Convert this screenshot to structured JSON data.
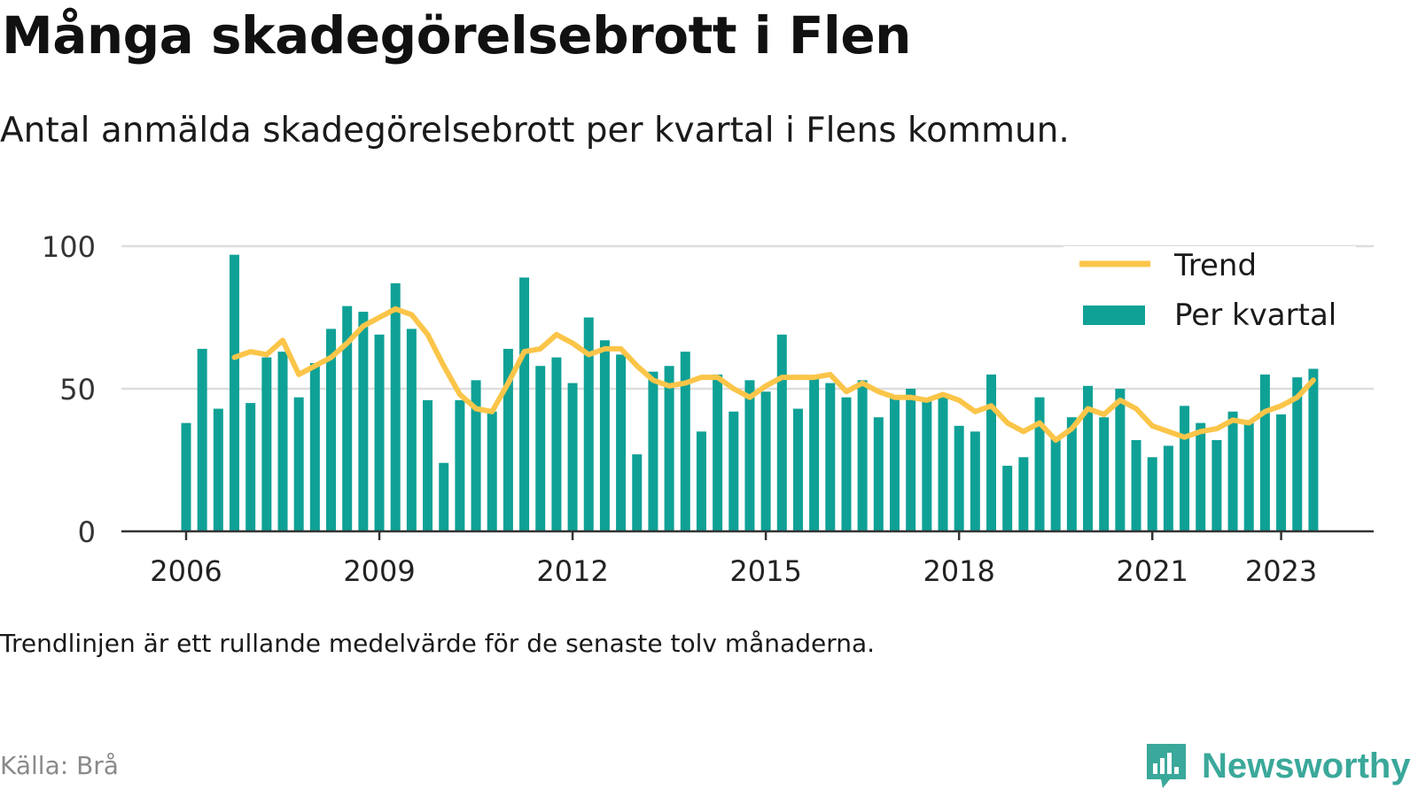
{
  "header": {
    "title": "Många skadegörelsebrott i Flen",
    "subtitle": "Antal anmälda skadegörelsebrott per kvartal i Flens kommun."
  },
  "footer": {
    "note": "Trendlinjen är ett rullande medelvärde för de senaste tolv månaderna.",
    "source": "Källa: Brå",
    "brand": "Newsworthy"
  },
  "colors": {
    "bars": "#0fa196",
    "trend": "#fbc549",
    "axis": "#333333",
    "grid": "#dddddd",
    "brand": "#3aa89a"
  },
  "chart_data": {
    "type": "bar",
    "title": "Många skadegörelsebrott i Flen",
    "subtitle": "Antal anmälda skadegörelsebrott per kvartal i Flens kommun.",
    "ylim": [
      0,
      100
    ],
    "yticks": [
      "0",
      "50",
      "100"
    ],
    "xticks": [
      {
        "label": "2006",
        "index": 0
      },
      {
        "label": "2009",
        "index": 12
      },
      {
        "label": "2012",
        "index": 24
      },
      {
        "label": "2015",
        "index": 36
      },
      {
        "label": "2018",
        "index": 48
      },
      {
        "label": "2021",
        "index": 60
      },
      {
        "label": "2023",
        "index": 68
      }
    ],
    "grid": true,
    "legend_position": "top-right",
    "categories": [
      "2006 Q1",
      "2006 Q2",
      "2006 Q3",
      "2006 Q4",
      "2007 Q1",
      "2007 Q2",
      "2007 Q3",
      "2007 Q4",
      "2008 Q1",
      "2008 Q2",
      "2008 Q3",
      "2008 Q4",
      "2009 Q1",
      "2009 Q2",
      "2009 Q3",
      "2009 Q4",
      "2010 Q1",
      "2010 Q2",
      "2010 Q3",
      "2010 Q4",
      "2011 Q1",
      "2011 Q2",
      "2011 Q3",
      "2011 Q4",
      "2012 Q1",
      "2012 Q2",
      "2012 Q3",
      "2012 Q4",
      "2013 Q1",
      "2013 Q2",
      "2013 Q3",
      "2013 Q4",
      "2014 Q1",
      "2014 Q2",
      "2014 Q3",
      "2014 Q4",
      "2015 Q1",
      "2015 Q2",
      "2015 Q3",
      "2015 Q4",
      "2016 Q1",
      "2016 Q2",
      "2016 Q3",
      "2016 Q4",
      "2017 Q1",
      "2017 Q2",
      "2017 Q3",
      "2017 Q4",
      "2018 Q1",
      "2018 Q2",
      "2018 Q3",
      "2018 Q4",
      "2019 Q1",
      "2019 Q2",
      "2019 Q3",
      "2019 Q4",
      "2020 Q1",
      "2020 Q2",
      "2020 Q3",
      "2020 Q4",
      "2021 Q1",
      "2021 Q2",
      "2021 Q3",
      "2021 Q4",
      "2022 Q1",
      "2022 Q2",
      "2022 Q3",
      "2022 Q4",
      "2023 Q1",
      "2023 Q2",
      "2023 Q3"
    ],
    "series": [
      {
        "name": "Per kvartal",
        "type": "bar",
        "values": [
          38,
          64,
          43,
          97,
          45,
          61,
          63,
          47,
          59,
          71,
          79,
          77,
          69,
          87,
          71,
          46,
          24,
          46,
          53,
          42,
          64,
          89,
          58,
          61,
          52,
          75,
          67,
          62,
          27,
          56,
          58,
          63,
          35,
          55,
          42,
          53,
          49,
          69,
          43,
          54,
          52,
          47,
          53,
          40,
          47,
          50,
          46,
          48,
          37,
          35,
          55,
          23,
          26,
          47,
          33,
          40,
          51,
          40,
          50,
          32,
          26,
          30,
          44,
          38,
          32,
          42,
          38,
          55,
          41,
          54,
          57
        ]
      },
      {
        "name": "Trend",
        "type": "line",
        "values": [
          null,
          null,
          null,
          61,
          63,
          62,
          67,
          55,
          58,
          61,
          66,
          72,
          75,
          78,
          76,
          69,
          58,
          48,
          43,
          42,
          52,
          63,
          64,
          69,
          66,
          62,
          64,
          64,
          58,
          53,
          51,
          52,
          54,
          54,
          50,
          47,
          51,
          54,
          54,
          54,
          55,
          49,
          52,
          49,
          47,
          47,
          46,
          48,
          46,
          42,
          44,
          38,
          35,
          38,
          32,
          36,
          43,
          41,
          46,
          43,
          37,
          35,
          33,
          35,
          36,
          39,
          38,
          42,
          44,
          47,
          53
        ]
      }
    ]
  }
}
